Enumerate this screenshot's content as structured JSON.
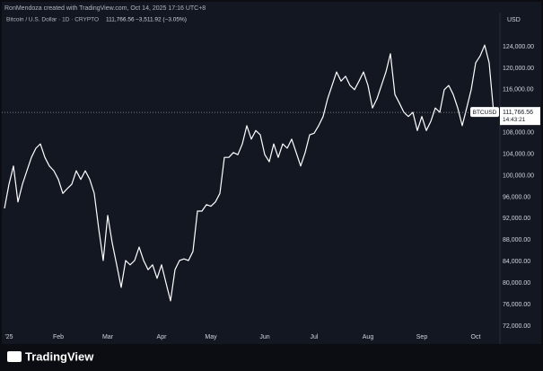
{
  "chart_data": {
    "type": "line",
    "attribution": "RonMendoza created with TradingView.com, Oct 14, 2025 17:16 UTC+8",
    "title": "Bitcoin / U.S. Dollar · 1D · CRYPTO",
    "last_price": "111,766.56",
    "change": "−3,511.92 (−3.05%)",
    "currency": "USD",
    "symbol_tag": "BTCUSD",
    "countdown": "14:43:21",
    "brand": "TradingView",
    "categories": [
      null,
      "'25",
      null,
      null,
      null,
      null,
      null,
      null,
      null,
      null,
      null,
      null,
      "Feb",
      null,
      null,
      null,
      null,
      null,
      null,
      null,
      null,
      null,
      null,
      "Mar",
      null,
      null,
      null,
      null,
      null,
      null,
      null,
      null,
      null,
      null,
      null,
      "Apr",
      null,
      null,
      null,
      null,
      null,
      null,
      null,
      null,
      null,
      null,
      "May",
      null,
      null,
      null,
      null,
      null,
      null,
      null,
      null,
      null,
      null,
      null,
      "Jun",
      null,
      null,
      null,
      null,
      null,
      null,
      null,
      null,
      null,
      null,
      "Jul",
      null,
      null,
      null,
      null,
      null,
      null,
      null,
      null,
      null,
      null,
      null,
      "Aug",
      null,
      null,
      null,
      null,
      null,
      null,
      null,
      null,
      null,
      null,
      null,
      "Sep",
      null,
      null,
      null,
      null,
      null,
      null,
      null,
      null,
      null,
      null,
      null,
      "Oct",
      null,
      null,
      null,
      null
    ],
    "series": [
      {
        "name": "BTCUSD",
        "color": "#ffffff",
        "values": [
          93900,
          98400,
          101800,
          95100,
          98400,
          100900,
          103400,
          105100,
          105900,
          103400,
          101800,
          100900,
          99300,
          96700,
          97600,
          98400,
          100900,
          99300,
          100900,
          99300,
          96700,
          90100,
          84200,
          92600,
          87500,
          83400,
          79200,
          84200,
          83400,
          84200,
          86700,
          84200,
          82500,
          83400,
          80900,
          83400,
          80000,
          76700,
          82500,
          84200,
          84500,
          84200,
          85900,
          93400,
          93400,
          94600,
          94300,
          95100,
          96700,
          103400,
          103400,
          104300,
          103900,
          105900,
          109300,
          106800,
          108400,
          107600,
          103900,
          102600,
          105900,
          103400,
          105900,
          105100,
          106800,
          104300,
          101800,
          104300,
          107600,
          107900,
          109300,
          111000,
          114300,
          116800,
          119300,
          117600,
          118500,
          116800,
          116000,
          117600,
          119300,
          116800,
          112600,
          114300,
          116800,
          119300,
          122700,
          115100,
          113500,
          111800,
          111000,
          111800,
          108400,
          111000,
          108400,
          110100,
          112600,
          111800,
          116000,
          116800,
          115100,
          112600,
          109300,
          112600,
          116000,
          121000,
          122300,
          124300,
          121000,
          111766.56
        ]
      }
    ],
    "ylim": [
      71160,
      129350
    ],
    "yticks": [
      {
        "value": 72000,
        "label": "72,000.00"
      },
      {
        "value": 76000,
        "label": "76,000.00"
      },
      {
        "value": 80000,
        "label": "80,000.00"
      },
      {
        "value": 84000,
        "label": "84,000.00"
      },
      {
        "value": 88000,
        "label": "88,000.00"
      },
      {
        "value": 92000,
        "label": "92,000.00"
      },
      {
        "value": 96000,
        "label": "96,000.00"
      },
      {
        "value": 100000,
        "label": "100,000.00"
      },
      {
        "value": 104000,
        "label": "104,000.00"
      },
      {
        "value": 108000,
        "label": "108,000.00"
      },
      {
        "value": 112000,
        "label": "112,000.00"
      },
      {
        "value": 116000,
        "label": "116,000.00"
      },
      {
        "value": 120000,
        "label": "120,000.00"
      },
      {
        "value": 124000,
        "label": "124,000.00"
      }
    ],
    "grid": false
  }
}
